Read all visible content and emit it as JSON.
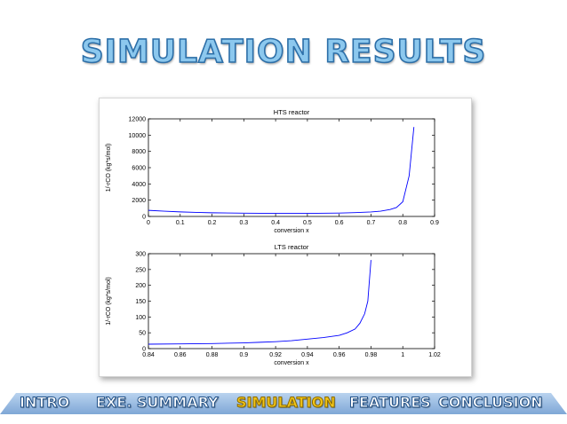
{
  "slide": {
    "title": "SIMULATION RESULTS"
  },
  "nav": {
    "items": [
      {
        "label": "INTRO",
        "active": false
      },
      {
        "label": "EXE. SUMMARY",
        "active": false
      },
      {
        "label": "SIMULATION",
        "active": true
      },
      {
        "label": "FEATURES",
        "active": false
      },
      {
        "label": "CONCLUSION",
        "active": false
      }
    ],
    "band_color": "#8fb4de",
    "active_color": "#f2c518"
  },
  "chart_data": [
    {
      "type": "line",
      "title": "HTS reactor",
      "xlabel": "conversion x",
      "ylabel": "1/-rCO (kg*s/mol)",
      "xlim": [
        0,
        0.9
      ],
      "ylim": [
        0,
        12000
      ],
      "xticks": [
        "0",
        "0.1",
        "0.2",
        "0.3",
        "0.4",
        "0.5",
        "0.6",
        "0.7",
        "0.8",
        "0.9"
      ],
      "yticks": [
        "0",
        "2000",
        "4000",
        "6000",
        "8000",
        "10000",
        "12000"
      ],
      "grid": false,
      "line_color": "#0000ff",
      "x": [
        0,
        0.05,
        0.1,
        0.15,
        0.2,
        0.3,
        0.4,
        0.5,
        0.6,
        0.65,
        0.7,
        0.73,
        0.76,
        0.78,
        0.8,
        0.82,
        0.835
      ],
      "y": [
        750,
        650,
        560,
        500,
        450,
        400,
        380,
        380,
        420,
        470,
        550,
        650,
        850,
        1100,
        1800,
        5000,
        11000
      ]
    },
    {
      "type": "line",
      "title": "LTS reactor",
      "xlabel": "conversion x",
      "ylabel": "1/-rCO (kg*s/mol)",
      "xlim": [
        0.84,
        1.02
      ],
      "ylim": [
        0,
        300
      ],
      "xticks": [
        "0.84",
        "0.86",
        "0.88",
        "0.9",
        "0.92",
        "0.94",
        "0.96",
        "0.98",
        "1",
        "1.02"
      ],
      "yticks": [
        "0",
        "50",
        "100",
        "150",
        "200",
        "250",
        "300"
      ],
      "grid": false,
      "line_color": "#0000ff",
      "x": [
        0.84,
        0.86,
        0.88,
        0.9,
        0.91,
        0.92,
        0.93,
        0.94,
        0.95,
        0.96,
        0.965,
        0.97,
        0.973,
        0.976,
        0.978,
        0.98
      ],
      "y": [
        14,
        15,
        16,
        18,
        20,
        22,
        25,
        30,
        35,
        42,
        50,
        62,
        80,
        110,
        150,
        280
      ]
    }
  ]
}
